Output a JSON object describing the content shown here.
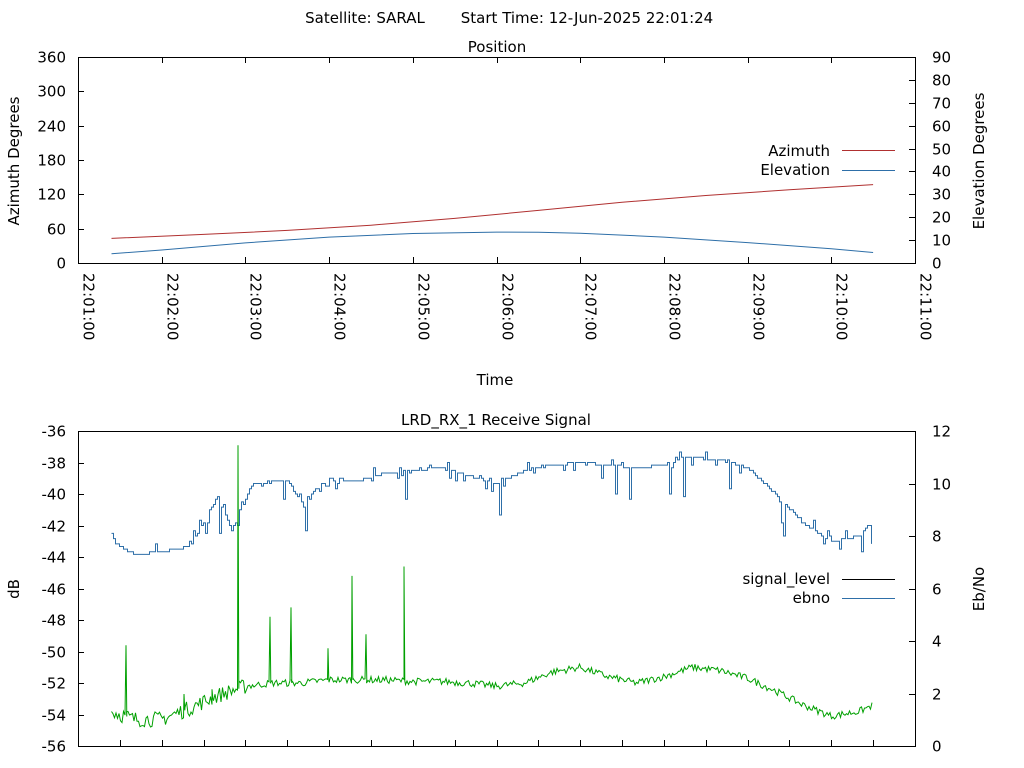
{
  "header": {
    "satellite": "Satellite: SARAL",
    "start_time": "Start Time: 12-Jun-2025 22:01:24"
  },
  "chart_data": [
    {
      "type": "line",
      "title": "Position",
      "xlabel": "Time",
      "ylabel": "Azimuth Degrees",
      "y2label": "Elevation Degrees",
      "xlim": [
        "22:01:00",
        "22:11:00"
      ],
      "ylim": [
        0,
        360
      ],
      "y2lim": [
        0,
        90
      ],
      "xticks": [
        "22:01:00",
        "22:02:00",
        "22:03:00",
        "22:04:00",
        "22:05:00",
        "22:06:00",
        "22:07:00",
        "22:08:00",
        "22:09:00",
        "22:10:00",
        "22:11:00"
      ],
      "yticks": [
        "0",
        "60",
        "120",
        "180",
        "240",
        "300",
        "360"
      ],
      "y2ticks": [
        "0",
        "10",
        "20",
        "30",
        "40",
        "50",
        "60",
        "70",
        "80",
        "90"
      ],
      "legend_position": "right",
      "grid": false,
      "colors": {
        "Azimuth": "#b03030",
        "Elevation": "#2e6fa8"
      },
      "series": [
        {
          "name": "Azimuth",
          "axis": "y",
          "x": [
            "22:01:24",
            "22:02:30",
            "22:03:30",
            "22:04:30",
            "22:05:30",
            "22:06:30",
            "22:07:30",
            "22:08:30",
            "22:09:30",
            "22:10:30"
          ],
          "y": [
            43,
            50,
            57,
            66,
            78,
            92,
            106,
            118,
            128,
            137
          ]
        },
        {
          "name": "Elevation",
          "axis": "y2",
          "x": [
            "22:01:24",
            "22:02:00",
            "22:03:00",
            "22:04:00",
            "22:05:00",
            "22:06:00",
            "22:06:30",
            "22:07:00",
            "22:08:00",
            "22:09:00",
            "22:10:00",
            "22:10:30"
          ],
          "y": [
            4,
            5.7,
            8.8,
            11.3,
            12.9,
            13.5,
            13.4,
            13,
            11.3,
            8.9,
            6.2,
            4.6
          ]
        }
      ]
    },
    {
      "type": "line",
      "title": "LRD_RX_1 Receive Signal",
      "ylabel": "dB",
      "y2label": "Eb/No",
      "ylim": [
        -56,
        -36
      ],
      "y2lim": [
        0,
        12
      ],
      "yticks": [
        "-36",
        "-38",
        "-40",
        "-42",
        "-44",
        "-46",
        "-48",
        "-50",
        "-52",
        "-54",
        "-56"
      ],
      "y2ticks": [
        "0",
        "2",
        "4",
        "6",
        "8",
        "10",
        "12"
      ],
      "legend_position": "right",
      "grid": false,
      "colors": {
        "signal_level": "#000000",
        "ebno": "#2e6fa8",
        "trace": "#00a000"
      },
      "series": [
        {
          "name": "signal_level",
          "axis": "y",
          "x": [],
          "y": []
        },
        {
          "name": "ebno",
          "axis": "y2",
          "x": [
            "22:01:24",
            "22:01:40",
            "22:02:00",
            "22:02:20",
            "22:02:40",
            "22:02:50",
            "22:03:05",
            "22:03:30",
            "22:03:40",
            "22:04:00",
            "22:04:20",
            "22:04:40",
            "22:05:00",
            "22:05:20",
            "22:05:40",
            "22:06:00",
            "22:06:20",
            "22:06:40",
            "22:07:00",
            "22:07:20",
            "22:07:40",
            "22:08:00",
            "22:08:15",
            "22:08:40",
            "22:09:00",
            "22:09:20",
            "22:09:40",
            "22:10:00",
            "22:10:20",
            "22:10:30"
          ],
          "y": [
            7.8,
            7.3,
            7.4,
            7.6,
            9.5,
            8.2,
            10.0,
            10.1,
            9.3,
            10.2,
            10.1,
            10.4,
            10.5,
            10.6,
            10.3,
            10.0,
            10.5,
            10.7,
            10.8,
            10.7,
            10.6,
            10.7,
            11.0,
            10.9,
            10.6,
            9.6,
            8.5,
            7.8,
            8.0,
            8.6
          ]
        },
        {
          "name": "",
          "axis": "y",
          "x": [
            "22:01:24",
            "22:01:40",
            "22:02:00",
            "22:02:20",
            "22:02:40",
            "22:03:00",
            "22:03:20",
            "22:03:40",
            "22:04:00",
            "22:04:20",
            "22:04:40",
            "22:05:00",
            "22:05:20",
            "22:05:40",
            "22:06:00",
            "22:06:20",
            "22:06:40",
            "22:07:00",
            "22:07:20",
            "22:07:40",
            "22:08:00",
            "22:08:20",
            "22:08:40",
            "22:09:00",
            "22:09:20",
            "22:09:40",
            "22:10:00",
            "22:10:20",
            "22:10:30"
          ],
          "y": [
            -53.8,
            -54.3,
            -54.3,
            -53.6,
            -52.8,
            -52.2,
            -52.0,
            -52.0,
            -51.8,
            -51.8,
            -51.8,
            -51.9,
            -51.9,
            -52.0,
            -52.2,
            -52.0,
            -51.3,
            -51.0,
            -51.6,
            -52.0,
            -51.6,
            -51.0,
            -51.2,
            -51.7,
            -52.5,
            -53.4,
            -54.1,
            -53.8,
            -53.4
          ]
        }
      ]
    }
  ]
}
